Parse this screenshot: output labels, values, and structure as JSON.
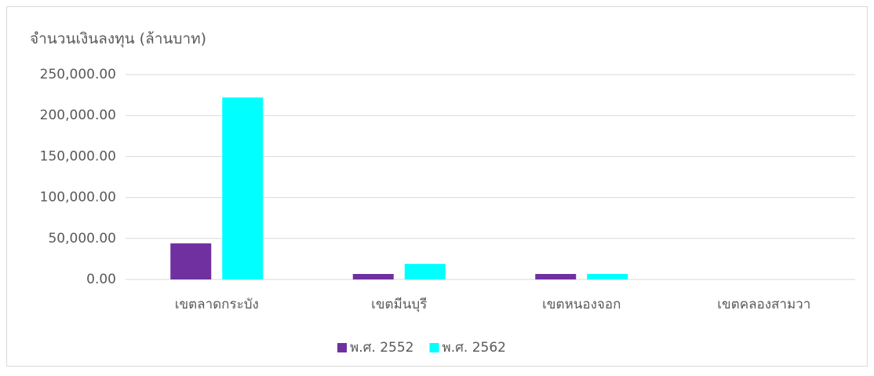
{
  "chart_data": {
    "type": "bar",
    "title": "จำนวนเงินลงทุน (ล้านบาท)",
    "categories": [
      "เขตลาดกระบัง",
      "เขตมีนบุรี",
      "เขตหนองจอก",
      "เขตคลองสามวา"
    ],
    "series": [
      {
        "name": "พ.ศ. 2552",
        "color": "#7030a0",
        "values": [
          44000,
          6700,
          6700,
          0
        ]
      },
      {
        "name": "พ.ศ. 2562",
        "color": "#00ffff",
        "values": [
          222000,
          19000,
          6700,
          0
        ]
      }
    ],
    "ylim": [
      0,
      250000
    ],
    "yticks": [
      {
        "value": 0,
        "label": "0.00"
      },
      {
        "value": 50000,
        "label": "50,000.00"
      },
      {
        "value": 100000,
        "label": "100,000.00"
      },
      {
        "value": 150000,
        "label": "150,000.00"
      },
      {
        "value": 200000,
        "label": "200,000.00"
      },
      {
        "value": 250000,
        "label": "250,000.00"
      }
    ],
    "grid": true,
    "legend": "bottom"
  }
}
